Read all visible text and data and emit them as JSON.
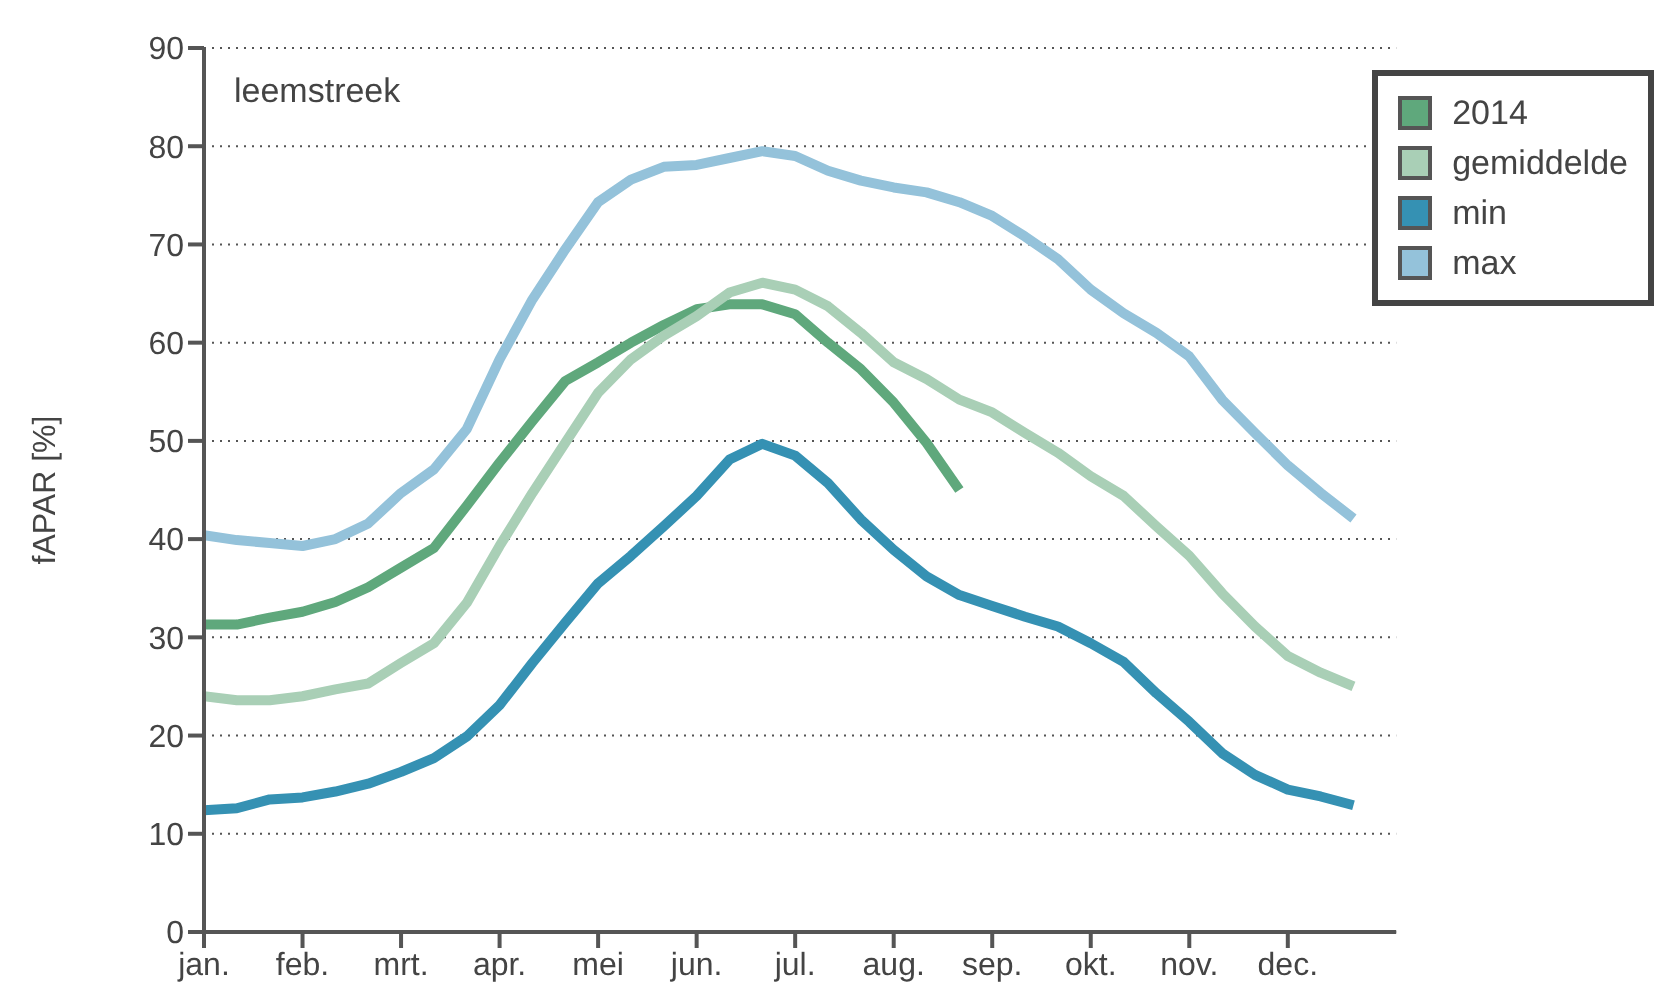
{
  "chart_data": {
    "type": "line",
    "ylabel": "fAPAR [%]",
    "annotations": [
      "leemstreek"
    ],
    "categories": [
      "jan.",
      null,
      null,
      "feb.",
      null,
      null,
      "mrt.",
      null,
      null,
      "apr.",
      null,
      null,
      "mei",
      null,
      null,
      "jun.",
      null,
      null,
      "jul.",
      null,
      null,
      "aug.",
      null,
      null,
      "sep.",
      null,
      null,
      "okt.",
      null,
      null,
      "nov.",
      null,
      null,
      "dec.",
      null,
      null
    ],
    "series": [
      {
        "name": "2014",
        "color": "#5fa87c",
        "values": [
          31.3,
          31.3,
          32.0,
          32.6,
          33.6,
          35.1,
          37.1,
          39.1,
          43.4,
          47.8,
          52,
          56.1,
          58,
          60,
          61.8,
          63.4,
          63.9,
          63.9,
          62.9,
          60,
          57.3,
          53.9,
          49.8,
          45,
          null,
          null,
          null,
          null,
          null,
          null,
          null,
          null,
          null,
          null,
          null,
          null
        ]
      },
      {
        "name": "gemiddelde",
        "color": "#a9cfb6",
        "values": [
          24,
          23.6,
          23.6,
          24,
          24.7,
          25.3,
          27.4,
          29.4,
          33.5,
          39.3,
          44.7,
          49.8,
          54.9,
          58.3,
          60.7,
          62.7,
          65.1,
          66.1,
          65.4,
          63.7,
          61,
          58,
          56.3,
          54.2,
          52.9,
          50.8,
          48.8,
          46.4,
          44.4,
          41.3,
          38.3,
          34.5,
          31.1,
          28.1,
          26.4,
          25
        ]
      },
      {
        "name": "min",
        "color": "#3591b3",
        "values": [
          12.4,
          12.6,
          13.5,
          13.7,
          14.3,
          15.1,
          16.3,
          17.7,
          19.9,
          23.1,
          27.4,
          31.5,
          35.5,
          38.3,
          41.3,
          44.4,
          48.1,
          49.7,
          48.5,
          45.7,
          42,
          38.9,
          36.2,
          34.3,
          33.2,
          32.1,
          31.1,
          29.4,
          27.5,
          24.3,
          21.4,
          18.2,
          16,
          14.5,
          13.8,
          12.9
        ]
      },
      {
        "name": "max",
        "color": "#94c2da",
        "values": [
          40.4,
          39.9,
          39.6,
          39.3,
          40.0,
          41.6,
          44.7,
          47.1,
          51.2,
          58.3,
          64.4,
          69.5,
          74.3,
          76.6,
          77.9,
          78.1,
          78.8,
          79.5,
          79,
          77.5,
          76.5,
          75.8,
          75.3,
          74.3,
          72.9,
          70.8,
          68.5,
          65.4,
          63,
          61,
          58.6,
          54.2,
          50.8,
          47.5,
          44.7,
          42.1
        ]
      }
    ],
    "ylim": [
      0,
      90
    ],
    "yticks": [
      0,
      10,
      20,
      30,
      40,
      50,
      60,
      70,
      80,
      90
    ],
    "grid": "y",
    "legend": "top right",
    "marker": "none",
    "line_style": "solid"
  }
}
